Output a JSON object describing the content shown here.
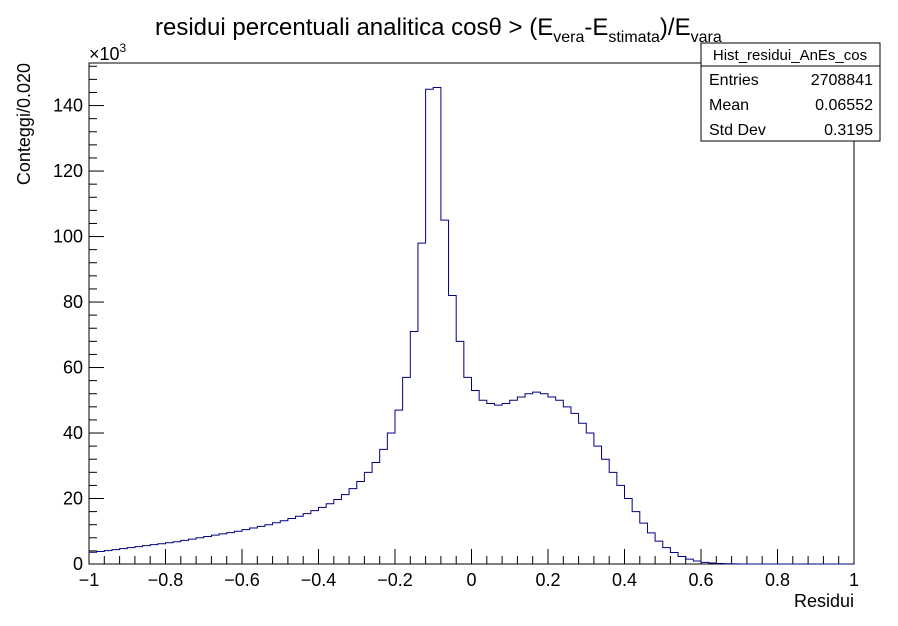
{
  "chart_data": {
    "type": "histogram",
    "title": {
      "main": "residui percentuali analitica cosθ > (E",
      "sub1": "vera",
      "mid": "-E",
      "sub2": "stimata",
      "close": ")/E",
      "sub3": "vara"
    },
    "xlabel": "Residui",
    "ylabel": "Conteggi/0.020",
    "y_multiplier": "×10",
    "y_multiplier_exp": "3",
    "xlim": [
      -1,
      1
    ],
    "ylim": [
      0,
      153
    ],
    "bin_width": 0.02,
    "x_tick_labels": [
      "−1",
      "−0.8",
      "−0.6",
      "−0.4",
      "−0.2",
      "0",
      "0.2",
      "0.4",
      "0.6",
      "0.8",
      "1"
    ],
    "y_tick_labels": [
      "0",
      "20",
      "40",
      "60",
      "80",
      "100",
      "120",
      "140"
    ],
    "line_color": "#000080",
    "bin_values_thousands": [
      3.6,
      3.8,
      4.1,
      4.4,
      4.7,
      5.0,
      5.3,
      5.6,
      5.9,
      6.2,
      6.5,
      6.8,
      7.2,
      7.6,
      8.0,
      8.4,
      8.8,
      9.2,
      9.6,
      10.0,
      10.5,
      11.0,
      11.5,
      12.0,
      12.6,
      13.2,
      13.9,
      14.6,
      15.4,
      16.3,
      17.3,
      18.4,
      19.7,
      21.2,
      23.0,
      25.2,
      28.0,
      31.0,
      35.0,
      40.0,
      47.0,
      57.0,
      71.0,
      98.0,
      145.0,
      145.5,
      105.0,
      82.0,
      68.0,
      57.0,
      53.0,
      50.0,
      49.0,
      48.5,
      49.0,
      50.0,
      51.0,
      52.0,
      52.5,
      52.0,
      51.0,
      50.0,
      48.0,
      46.0,
      43.0,
      40.0,
      36.0,
      32.0,
      28.0,
      24.0,
      20.0,
      16.0,
      12.5,
      9.5,
      7.0,
      5.0,
      3.5,
      2.3,
      1.5,
      0.9,
      0.5,
      0.3,
      0.15,
      0.08,
      0.03,
      0.01,
      0,
      0,
      0,
      0,
      0,
      0,
      0,
      0,
      0,
      0,
      0,
      0,
      0,
      0
    ]
  },
  "stats_box": {
    "name": "Hist_residui_AnEs_cos",
    "rows": [
      {
        "label": "Entries",
        "value": "2708841"
      },
      {
        "label": "Mean",
        "value": "0.06552"
      },
      {
        "label": "Std Dev",
        "value": "0.3195"
      }
    ]
  }
}
